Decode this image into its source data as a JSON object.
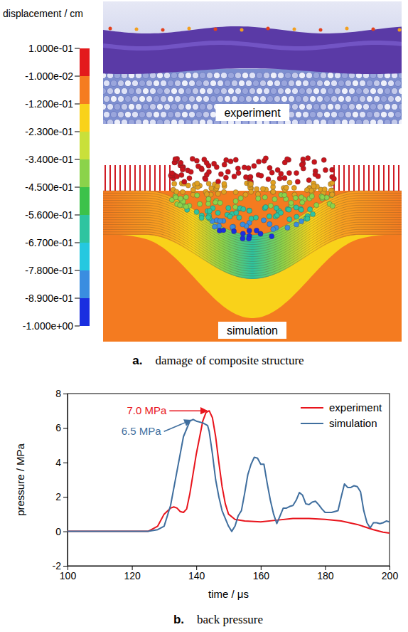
{
  "panel_a": {
    "colorbar": {
      "title": "displacement / cm",
      "ticks": [
        {
          "value": 0.1,
          "label": "1.000e-01"
        },
        {
          "value": -0.01,
          "label": "-1.000e-02"
        },
        {
          "value": -0.12,
          "label": "-1.200e-01"
        },
        {
          "value": -0.23,
          "label": "-2.300e-01"
        },
        {
          "value": -0.34,
          "label": "-3.400e-01"
        },
        {
          "value": -0.45,
          "label": "-4.500e-01"
        },
        {
          "value": -0.56,
          "label": "-5.600e-01"
        },
        {
          "value": -0.67,
          "label": "-6.700e-01"
        },
        {
          "value": -0.78,
          "label": "-7.800e-01"
        },
        {
          "value": -0.89,
          "label": "-8.900e-01"
        },
        {
          "value": -1.0,
          "label": "-1.000e+00"
        }
      ],
      "colors": [
        "#e31a1c",
        "#f57c20",
        "#f9d21a",
        "#c9e03a",
        "#8bd34a",
        "#3cc24a",
        "#2ec4a0",
        "#25c8e0",
        "#3a8de0",
        "#1a2ee0"
      ]
    },
    "images": [
      "experiment",
      "simulation"
    ],
    "letter": "a.",
    "caption": "damage of composite structure"
  },
  "chart_data": {
    "type": "line",
    "letter": "b.",
    "caption": "back pressure",
    "xlabel": "time / μs",
    "ylabel": "pressure / MPa",
    "xlim": [
      100,
      200
    ],
    "xticks": [
      100,
      120,
      140,
      160,
      180,
      200
    ],
    "ylim": [
      -2,
      8
    ],
    "yticks": [
      -2,
      0,
      2,
      4,
      6,
      8
    ],
    "legend": "upper right",
    "series": [
      {
        "name": "experiment",
        "color": "#e8141c",
        "x": [
          100,
          110,
          120,
          125,
          128,
          130,
          132,
          133,
          134,
          135,
          136,
          137,
          138,
          140,
          142,
          143,
          144,
          145,
          146,
          147,
          148,
          149,
          150,
          152,
          155,
          160,
          165,
          170,
          175,
          180,
          185,
          190,
          195,
          198,
          200
        ],
        "values": [
          0,
          0,
          0,
          0,
          0.3,
          1.0,
          1.35,
          1.42,
          1.35,
          1.15,
          1.1,
          1.3,
          2.2,
          4.5,
          6.4,
          6.9,
          7.0,
          6.6,
          5.5,
          4.0,
          2.6,
          1.6,
          1.0,
          0.7,
          0.6,
          0.55,
          0.65,
          0.75,
          0.75,
          0.7,
          0.6,
          0.4,
          0.1,
          -0.05,
          -0.1
        ]
      },
      {
        "name": "simulation",
        "color": "#3f6e9e",
        "x": [
          100,
          110,
          120,
          125,
          128,
          130,
          132,
          134,
          136,
          138,
          139,
          140,
          142,
          143.5,
          144,
          145,
          146,
          147,
          148,
          150,
          151,
          152,
          153,
          154,
          155,
          156,
          157,
          158,
          159,
          160,
          161,
          162,
          163,
          164,
          165,
          166,
          167,
          168,
          169,
          170,
          171,
          172,
          173,
          174,
          175,
          176,
          177,
          178,
          179,
          180,
          181,
          182,
          183,
          184,
          185,
          186,
          187,
          188,
          189,
          190,
          191,
          192,
          193,
          194,
          195,
          196,
          197,
          198,
          199,
          200
        ],
        "values": [
          0,
          0,
          0,
          0,
          0.1,
          0.3,
          1.5,
          3.5,
          5.5,
          6.4,
          6.5,
          6.4,
          6.3,
          6.15,
          5.8,
          4.5,
          3.0,
          2.0,
          1.2,
          0.3,
          0.0,
          0.3,
          0.9,
          1.2,
          2.2,
          3.3,
          3.9,
          4.3,
          4.25,
          3.9,
          3.9,
          2.8,
          1.8,
          1.0,
          0.45,
          0.9,
          1.35,
          1.35,
          1.45,
          1.5,
          1.8,
          2.25,
          2.1,
          1.6,
          1.55,
          1.7,
          1.75,
          1.55,
          1.3,
          1.1,
          1.1,
          1.1,
          1.15,
          1.2,
          2.0,
          2.75,
          2.55,
          2.55,
          2.65,
          2.6,
          2.3,
          1.2,
          0.5,
          0.2,
          0.5,
          0.5,
          0.45,
          0.5,
          0.6,
          0.55
        ]
      }
    ],
    "annotations": [
      {
        "text": "7.0 MPa",
        "x": 144,
        "y": 7.0,
        "color": "#e8141c"
      },
      {
        "text": "6.5 MPa",
        "x": 139,
        "y": 6.5,
        "color": "#3f6e9e"
      }
    ]
  }
}
